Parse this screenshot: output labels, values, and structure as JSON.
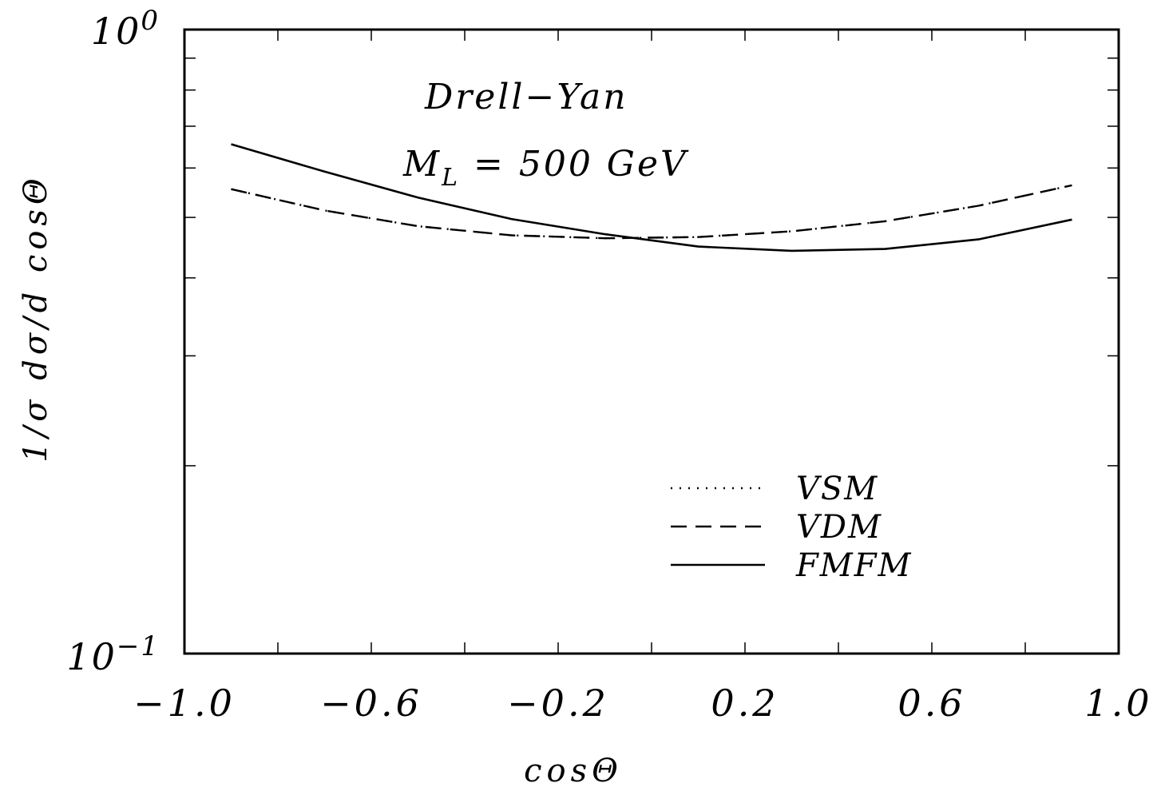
{
  "chart_data": {
    "type": "line",
    "xlabel": "cosΘ",
    "ylabel": "1/σ dσ/d cosΘ",
    "xlim": [
      -1.0,
      1.0
    ],
    "ylim": [
      0.1,
      1.0
    ],
    "yscale": "log",
    "grid": false,
    "legend_position": "bottom-right",
    "x_ticks": [
      "−1.0",
      "−0.6",
      "−0.2",
      "0.2",
      "0.6",
      "1.0"
    ],
    "y_ticks": [
      {
        "base": "10",
        "exp": "0",
        "value": 1.0
      },
      {
        "base": "10",
        "exp": "−1",
        "value": 0.1
      }
    ],
    "annotations": {
      "process": "Drell−Yan",
      "mass_symbol": "M",
      "mass_subscript": "L",
      "mass_value": " = 500 GeV"
    },
    "series": [
      {
        "name": "VSM",
        "style": "dotted",
        "x": [
          -0.9,
          -0.7,
          -0.5,
          -0.3,
          -0.1,
          0.1,
          0.3,
          0.5,
          0.7,
          0.9
        ],
        "values": [
          0.555,
          0.513,
          0.484,
          0.468,
          0.463,
          0.465,
          0.475,
          0.493,
          0.522,
          0.563
        ]
      },
      {
        "name": "VDM",
        "style": "dashed",
        "x": [
          -0.9,
          -0.7,
          -0.5,
          -0.3,
          -0.1,
          0.1,
          0.3,
          0.5,
          0.7,
          0.9
        ],
        "values": [
          0.555,
          0.513,
          0.484,
          0.468,
          0.463,
          0.465,
          0.475,
          0.493,
          0.522,
          0.563
        ]
      },
      {
        "name": "FMFM",
        "style": "solid",
        "x": [
          -0.9,
          -0.7,
          -0.5,
          -0.3,
          -0.1,
          0.1,
          0.3,
          0.5,
          0.7,
          0.9
        ],
        "values": [
          0.655,
          0.592,
          0.538,
          0.497,
          0.47,
          0.449,
          0.442,
          0.445,
          0.461,
          0.496
        ]
      }
    ]
  }
}
